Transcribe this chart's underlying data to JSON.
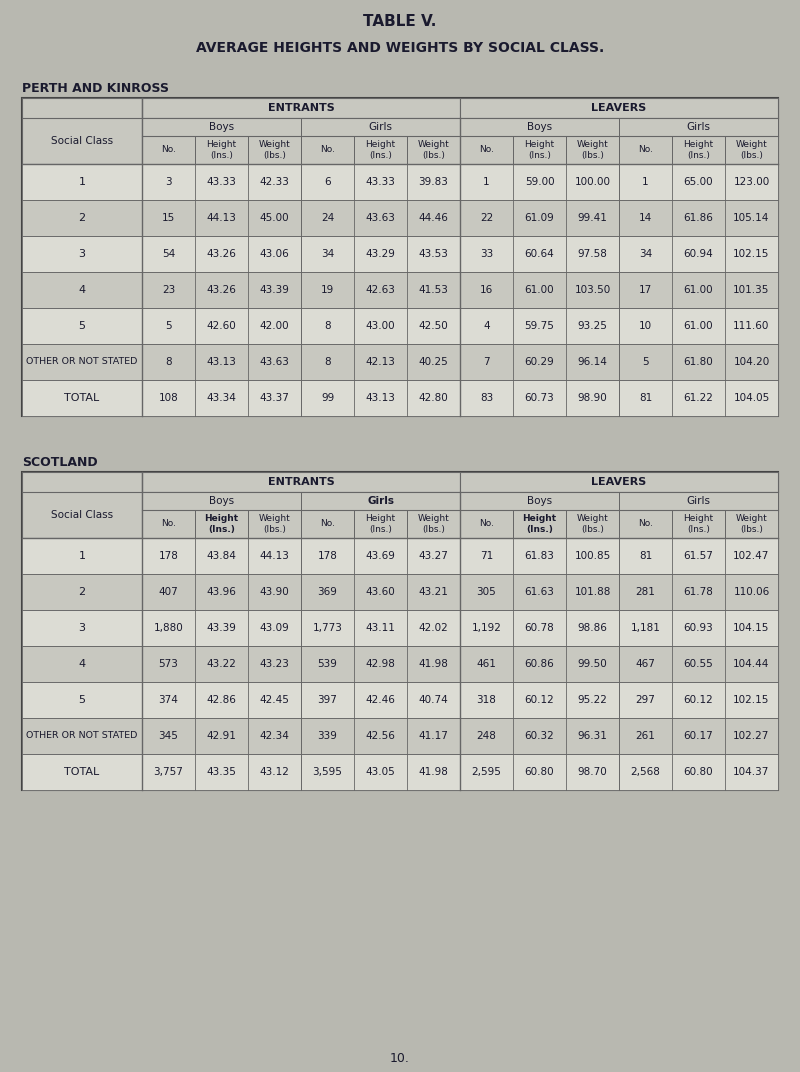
{
  "title1": "TABLE V.",
  "title2": "AVERAGE HEIGHTS AND WEIGHTS BY SOCIAL CLASS.",
  "section1_label": "PERTH AND KINROSS",
  "section2_label": "SCOTLAND",
  "page_number": "10.",
  "bg_color": "#b8b8b0",
  "table_bg_light": "#dcdcd4",
  "table_bg_dark": "#c8c8c0",
  "header_bg": "#c8c8c0",
  "border_color": "#444444",
  "inner_line_color": "#666666",
  "text_color": "#1a1a2e",
  "entrants_label": "ENTRANTS",
  "leavers_label": "LEAVERS",
  "boys_label": "Boys",
  "girls_label": "Girls",
  "social_class_label": "Social Class",
  "pk_rows": [
    [
      "1",
      "3",
      "43.33",
      "42.33",
      "6",
      "43.33",
      "39.83",
      "1",
      "59.00",
      "100.00",
      "1",
      "65.00",
      "123.00"
    ],
    [
      "2",
      "15",
      "44.13",
      "45.00",
      "24",
      "43.63",
      "44.46",
      "22",
      "61.09",
      "99.41",
      "14",
      "61.86",
      "105.14"
    ],
    [
      "3",
      "54",
      "43.26",
      "43.06",
      "34",
      "43.29",
      "43.53",
      "33",
      "60.64",
      "97.58",
      "34",
      "60.94",
      "102.15"
    ],
    [
      "4",
      "23",
      "43.26",
      "43.39",
      "19",
      "42.63",
      "41.53",
      "16",
      "61.00",
      "103.50",
      "17",
      "61.00",
      "101.35"
    ],
    [
      "5",
      "5",
      "42.60",
      "42.00",
      "8",
      "43.00",
      "42.50",
      "4",
      "59.75",
      "93.25",
      "10",
      "61.00",
      "111.60"
    ],
    [
      "OTHER OR NOT STATED",
      "8",
      "43.13",
      "43.63",
      "8",
      "42.13",
      "40.25",
      "7",
      "60.29",
      "96.14",
      "5",
      "61.80",
      "104.20"
    ],
    [
      "TOTAL",
      "108",
      "43.34",
      "43.37",
      "99",
      "43.13",
      "42.80",
      "83",
      "60.73",
      "98.90",
      "81",
      "61.22",
      "104.05"
    ]
  ],
  "sc_rows": [
    [
      "1",
      "178",
      "43.84",
      "44.13",
      "178",
      "43.69",
      "43.27",
      "71",
      "61.83",
      "100.85",
      "81",
      "61.57",
      "102.47"
    ],
    [
      "2",
      "407",
      "43.96",
      "43.90",
      "369",
      "43.60",
      "43.21",
      "305",
      "61.63",
      "101.88",
      "281",
      "61.78",
      "110.06"
    ],
    [
      "3",
      "1,880",
      "43.39",
      "43.09",
      "1,773",
      "43.11",
      "42.02",
      "1,192",
      "60.78",
      "98.86",
      "1,181",
      "60.93",
      "104.15"
    ],
    [
      "4",
      "573",
      "43.22",
      "43.23",
      "539",
      "42.98",
      "41.98",
      "461",
      "60.86",
      "99.50",
      "467",
      "60.55",
      "104.44"
    ],
    [
      "5",
      "374",
      "42.86",
      "42.45",
      "397",
      "42.46",
      "40.74",
      "318",
      "60.12",
      "95.22",
      "297",
      "60.12",
      "102.15"
    ],
    [
      "OTHER OR NOT STATED",
      "345",
      "42.91",
      "42.34",
      "339",
      "42.56",
      "41.17",
      "248",
      "60.32",
      "96.31",
      "261",
      "60.17",
      "102.27"
    ],
    [
      "TOTAL",
      "3,757",
      "43.35",
      "43.12",
      "3,595",
      "43.05",
      "41.98",
      "2,595",
      "60.80",
      "98.70",
      "2,568",
      "60.80",
      "104.37"
    ]
  ]
}
